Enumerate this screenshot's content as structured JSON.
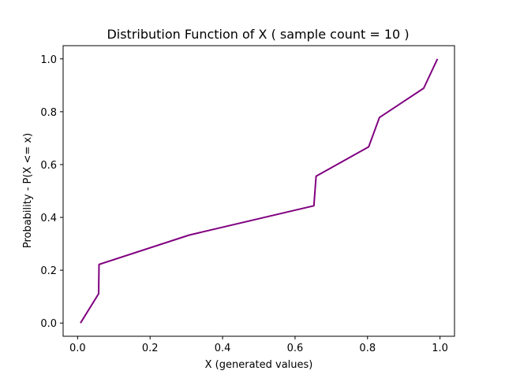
{
  "chart_data": {
    "type": "line",
    "title": "Distribution Function of X ( sample count = 10 )",
    "xlabel": "X (generated values)",
    "ylabel": "Probability - P(X <= x)",
    "xlim": [
      -0.04,
      1.04
    ],
    "ylim": [
      -0.05,
      1.05
    ],
    "xticks": [
      0.0,
      0.2,
      0.4,
      0.6,
      0.8,
      1.0
    ],
    "xtick_labels": [
      "0.0",
      "0.2",
      "0.4",
      "0.6",
      "0.8",
      "1.0"
    ],
    "yticks": [
      0.0,
      0.2,
      0.4,
      0.6,
      0.8,
      1.0
    ],
    "ytick_labels": [
      "0.0",
      "0.2",
      "0.4",
      "0.6",
      "0.8",
      "1.0"
    ],
    "grid": false,
    "series": [
      {
        "color": "#800080",
        "x": [
          0.008,
          0.058,
          0.059,
          0.308,
          0.652,
          0.658,
          0.803,
          0.833,
          0.955,
          0.993
        ],
        "y": [
          0.0,
          0.111,
          0.222,
          0.333,
          0.444,
          0.556,
          0.667,
          0.778,
          0.889,
          1.0
        ]
      }
    ]
  }
}
